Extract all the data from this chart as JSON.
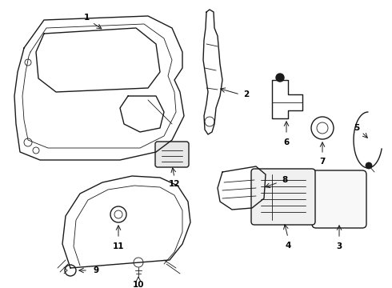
{
  "bg_color": "#ffffff",
  "line_color": "#1a1a1a",
  "label_color": "#000000",
  "figsize": [
    4.9,
    3.6
  ],
  "dpi": 100
}
